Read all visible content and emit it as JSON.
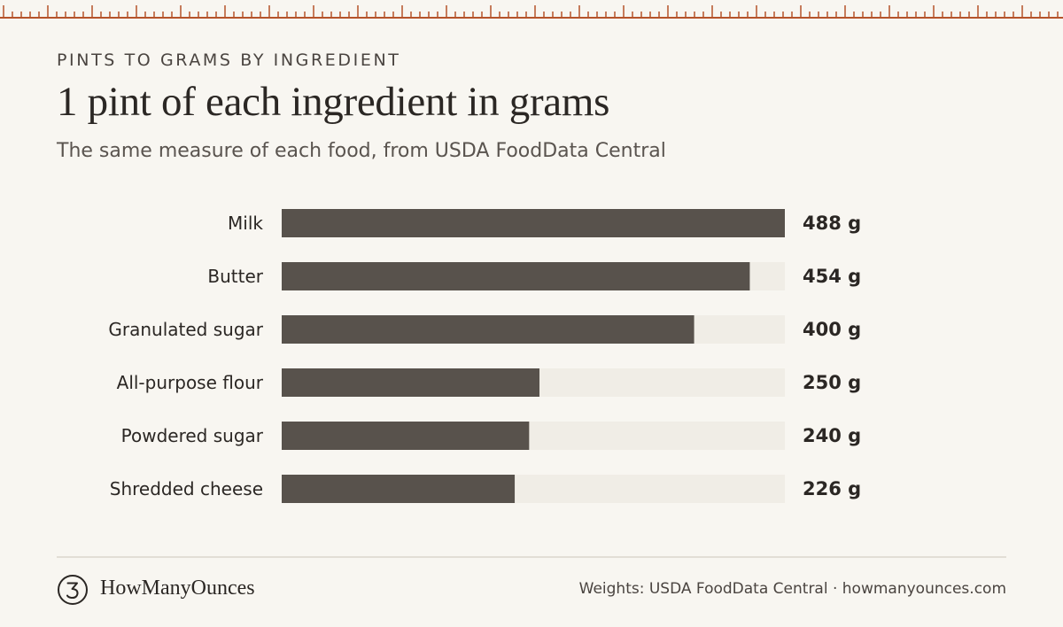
{
  "header": {
    "eyebrow": "PINTS TO GRAMS BY INGREDIENT",
    "title": "1 pint of each ingredient in grams",
    "subtitle": "The same measure of each food, from USDA FoodData Central"
  },
  "chart_data": {
    "type": "bar",
    "orientation": "horizontal",
    "categories": [
      "Milk",
      "Butter",
      "Granulated sugar",
      "All-purpose flour",
      "Powdered sugar",
      "Shredded cheese"
    ],
    "values": [
      488,
      454,
      400,
      250,
      240,
      226
    ],
    "value_labels": [
      "488 g",
      "454 g",
      "400 g",
      "250 g",
      "240 g",
      "226 g"
    ],
    "unit": "g",
    "xlim": [
      0,
      488
    ],
    "grid": false,
    "legend": "none"
  },
  "footer": {
    "brand": "HowManyOunces",
    "source": "Weights: USDA FoodData Central · howmanyounces.com"
  },
  "colors": {
    "background": "#f8f6f1",
    "bar": "#58524c",
    "track": "#f0ede6",
    "ruler": "#b5542b",
    "text": "#2b2724"
  },
  "icons": {
    "logo": "three-in-circle-icon"
  }
}
